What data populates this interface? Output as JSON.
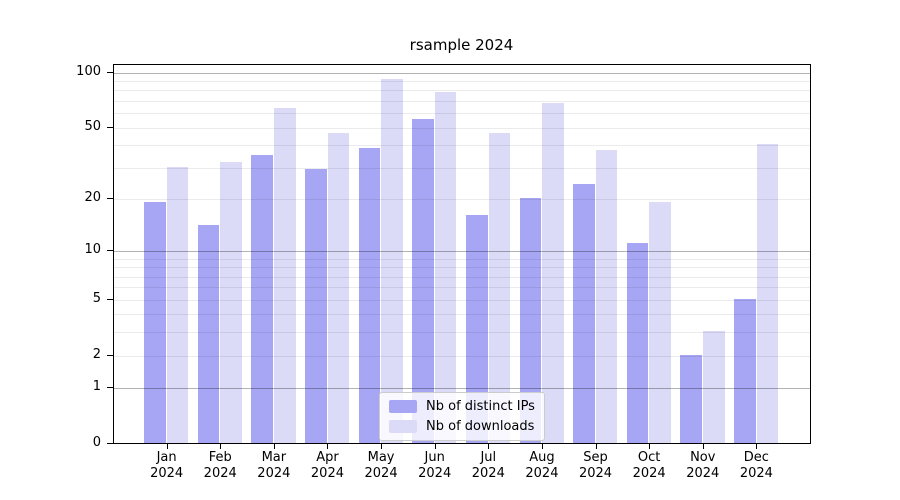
{
  "chart_data": {
    "type": "bar",
    "title": "rsample 2024",
    "categories": [
      "Jan",
      "Feb",
      "Mar",
      "Apr",
      "May",
      "Jun",
      "Jul",
      "Aug",
      "Sep",
      "Oct",
      "Nov",
      "Dec"
    ],
    "category_year": "2024",
    "series": [
      {
        "name": "Nb of distinct IPs",
        "color": "#a6a6f5",
        "values": [
          19,
          14,
          35,
          29,
          38,
          55,
          16,
          20,
          24,
          11,
          2,
          5
        ]
      },
      {
        "name": "Nb of downloads",
        "color": "#dbdbf8",
        "values": [
          30,
          32,
          63,
          46,
          91,
          77,
          46,
          67,
          37,
          19,
          3,
          40
        ]
      }
    ],
    "xlabel": "",
    "ylabel": "",
    "yscale": "log1p",
    "ylim": [
      0,
      110
    ],
    "yticks": [
      0,
      1,
      2,
      5,
      10,
      20,
      50,
      100
    ],
    "minor_gridlines": [
      2,
      3,
      4,
      5,
      6,
      7,
      8,
      9,
      20,
      30,
      40,
      50,
      60,
      70,
      80,
      90
    ],
    "major_gridlines": [
      1,
      10,
      100
    ],
    "grid": "horizontal",
    "legend_position": "lower center"
  },
  "colors": {
    "grid_minor": "rgba(0,0,0,0.08)",
    "grid_major": "rgba(0,0,0,0.30)",
    "spine": "#000000",
    "background": "#ffffff",
    "text": "#000000"
  }
}
